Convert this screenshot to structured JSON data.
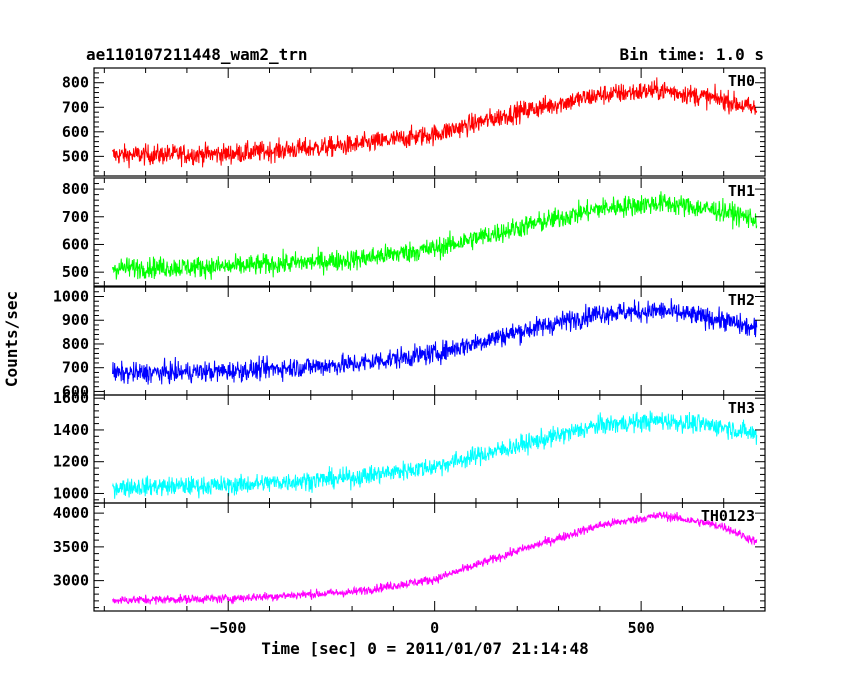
{
  "header": {
    "title": "ae110107211448_wam2_trn",
    "bin_time": "Bin time: 1.0 s"
  },
  "axes": {
    "xlabel": "Time [sec] 0 = 2011/01/07 21:14:48",
    "ylabel": "Counts/sec",
    "xlim": [
      -825,
      800
    ],
    "x_ticks": [
      -500,
      0,
      500
    ],
    "x_tick_labels": [
      "−500",
      "0",
      "500"
    ]
  },
  "chart_data": {
    "type": "line",
    "x_range": [
      -780,
      780
    ],
    "x_step": 1,
    "series": [
      {
        "name": "TH0",
        "color": "#ff0000",
        "ylim": [
          420,
          860
        ],
        "yticks": [
          500,
          600,
          700,
          800
        ],
        "trend": {
          "x": [
            -780,
            -500,
            -200,
            0,
            200,
            400,
            550,
            700,
            780
          ],
          "y": [
            505,
            510,
            545,
            590,
            680,
            750,
            770,
            730,
            690
          ]
        },
        "noise": 38
      },
      {
        "name": "TH1",
        "color": "#00ff00",
        "ylim": [
          450,
          840
        ],
        "yticks": [
          500,
          600,
          700,
          800
        ],
        "trend": {
          "x": [
            -780,
            -500,
            -200,
            0,
            200,
            400,
            550,
            700,
            780
          ],
          "y": [
            515,
            520,
            545,
            585,
            660,
            730,
            750,
            720,
            690
          ]
        },
        "noise": 35
      },
      {
        "name": "TH2",
        "color": "#0000ff",
        "ylim": [
          585,
          1040
        ],
        "yticks": [
          600,
          700,
          800,
          900,
          1000
        ],
        "trend": {
          "x": [
            -780,
            -500,
            -200,
            0,
            200,
            400,
            550,
            700,
            780
          ],
          "y": [
            675,
            685,
            715,
            760,
            850,
            930,
            940,
            900,
            860
          ]
        },
        "noise": 40
      },
      {
        "name": "TH3",
        "color": "#00ffff",
        "ylim": [
          940,
          1620
        ],
        "yticks": [
          1000,
          1200,
          1400,
          1600
        ],
        "trend": {
          "x": [
            -780,
            -500,
            -200,
            0,
            200,
            400,
            550,
            700,
            780
          ],
          "y": [
            1040,
            1050,
            1100,
            1170,
            1300,
            1430,
            1460,
            1420,
            1370
          ]
        },
        "noise": 55
      },
      {
        "name": "TH0123",
        "color": "#ff00ff",
        "ylim": [
          2550,
          4150
        ],
        "yticks": [
          3000,
          3500,
          4000
        ],
        "trend": {
          "x": [
            -780,
            -500,
            -200,
            0,
            200,
            400,
            550,
            700,
            780
          ],
          "y": [
            2710,
            2735,
            2830,
            3020,
            3440,
            3820,
            3970,
            3800,
            3570
          ]
        },
        "noise": 60
      }
    ]
  }
}
